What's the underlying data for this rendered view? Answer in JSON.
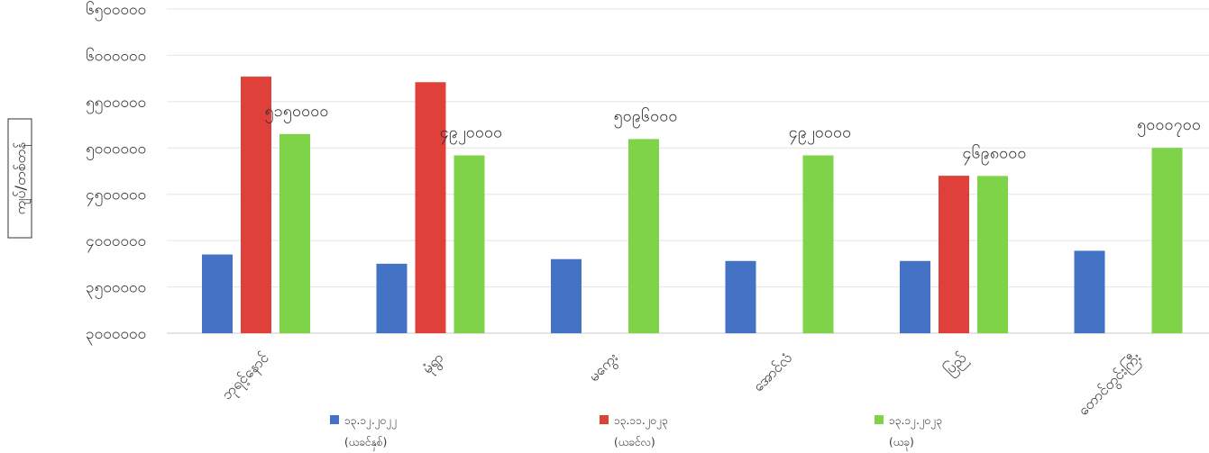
{
  "chart_data": {
    "type": "bar",
    "ylabel": "ကျပ်/တစ်တန်",
    "ylim": [
      3000000,
      6500000
    ],
    "y_ticks": [
      3000000,
      3500000,
      4000000,
      4500000,
      5000000,
      5500000,
      6000000,
      6500000
    ],
    "y_tick_labels": [
      "၃၀၀၀၀၀၀",
      "၃၅၀၀၀၀၀",
      "၄၀၀၀၀၀၀",
      "၄၅၀၀၀၀၀",
      "၅၀၀၀၀၀၀",
      "၅၅၀၀၀၀၀",
      "၆၀၀၀၀၀၀",
      "၆၅၀၀၀၀၀"
    ],
    "grid": true,
    "legend_position": "bottom",
    "categories": [
      "ဘုရင့်နောင်",
      "မုံရွာ",
      "မကွေး",
      "အောင်လံ",
      "ပြည်",
      "တောင်တွင်းကြီး"
    ],
    "series": [
      {
        "name": "၁၃.၁၂.၂၀၂၂",
        "name_line2": "(ယခင်နှစ်)",
        "color": "#4472c4",
        "values": [
          3850000,
          3750000,
          3800000,
          3780000,
          3780000,
          3890000
        ]
      },
      {
        "name": "၁၃.၁၁.၂၀၂၃",
        "name_line2": "(ယခင်လ)",
        "color": "#e0403a",
        "values": [
          5770000,
          5710000,
          null,
          null,
          4700000,
          null
        ]
      },
      {
        "name": "၁၃.၁၂.၂၀၂၃",
        "name_line2": "(ယခု)",
        "color": "#7ed348",
        "values": [
          5150000,
          4920000,
          5096000,
          4920000,
          4698000,
          5000700
        ]
      }
    ],
    "data_labels": [
      "၅၁၅၀၀၀၀",
      "၄၉၂၀၀၀၀",
      "၅၀၉၆၀၀၀",
      "၄၉၂၀၀၀၀",
      "၄၆၉၈၀၀၀",
      "၅၀၀၀၇၀၀"
    ]
  }
}
